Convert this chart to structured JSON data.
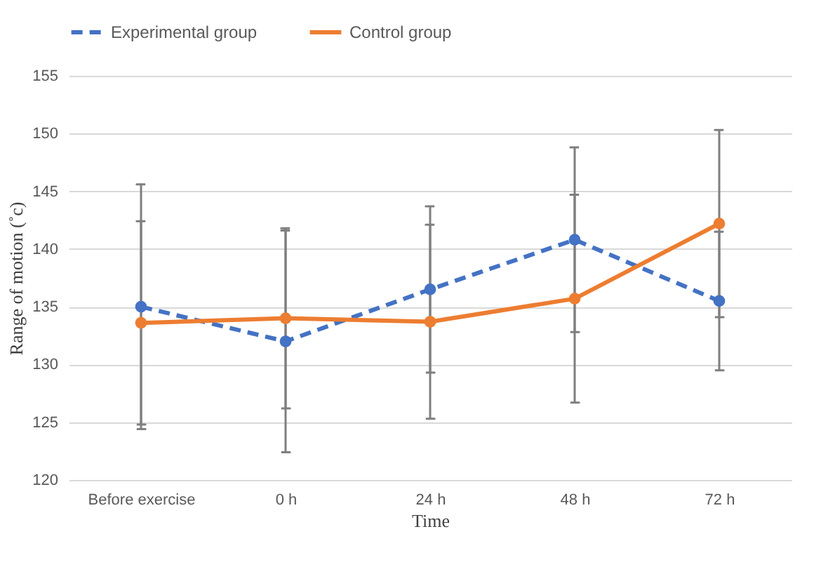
{
  "chart_data": {
    "type": "line",
    "xlabel": "Time",
    "ylabel": "Range of motion (˚c)",
    "categories": [
      "Before exercise",
      "0 h",
      "24 h",
      "48 h",
      "72 h"
    ],
    "series": [
      {
        "name": "Experimental group",
        "color": "#4472c4",
        "line_style": "dashed",
        "values": [
          135.0,
          132.0,
          136.5,
          140.8,
          135.5
        ],
        "errors": [
          10.6,
          9.6,
          7.2,
          8.0,
          6.0
        ]
      },
      {
        "name": "Control group",
        "color": "#ed7d31",
        "line_style": "solid",
        "values": [
          133.6,
          134.0,
          133.7,
          135.7,
          142.2
        ],
        "errors": [
          8.8,
          7.8,
          8.4,
          9.0,
          8.1
        ]
      }
    ],
    "ylim": [
      120,
      155
    ],
    "yticks": [
      120,
      125,
      130,
      135,
      140,
      145,
      150,
      155
    ],
    "grid": "y",
    "legend": "top",
    "marker": "circle"
  }
}
